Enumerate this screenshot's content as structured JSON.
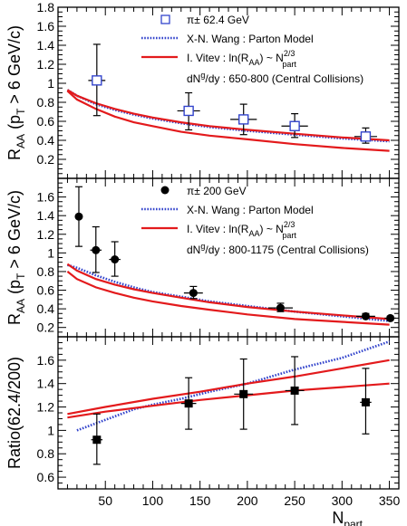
{
  "chart_data": [
    {
      "type": "scatter",
      "ylabel": "R_AA (p_T > 6 GeV/c)",
      "ylim": [
        0,
        1.8
      ],
      "yticks": [
        0.2,
        0.4,
        0.6,
        0.8,
        1.0,
        1.2,
        1.4,
        1.6,
        1.8
      ],
      "ytick_labels": [
        "0.2",
        "0.4",
        "0.6",
        "0.8",
        "1",
        "1.2",
        "1.4",
        "1.6",
        "1.8"
      ],
      "legend": {
        "placement": "top-center",
        "data_label": "π± 62.4 GeV",
        "wang_label": "X-N. Wang : Parton Model",
        "vitev_label_main": "I. Vitev : ln(R",
        "vitev_label_sub": "AA",
        "vitev_label_mid": ") ~ N",
        "vitev_label_sup": "2/3",
        "vitev_label_sub2": "part",
        "note_pre": "dN",
        "note_sup": "g",
        "note_post": "/dy : 650-800 (Central Collisions)"
      },
      "series": [
        {
          "name": "π± 62.4 GeV",
          "marker": "open-square",
          "color": "#3344cc",
          "points": [
            {
              "x": 41,
              "y": 1.03,
              "xerr": 9,
              "ylo": 0.66,
              "yhi": 1.41
            },
            {
              "x": 138,
              "y": 0.71,
              "xerr": 12,
              "ylo": 0.51,
              "yhi": 0.9
            },
            {
              "x": 196,
              "y": 0.62,
              "xerr": 14,
              "ylo": 0.46,
              "yhi": 0.78
            },
            {
              "x": 250,
              "y": 0.55,
              "xerr": 14,
              "ylo": 0.43,
              "yhi": 0.68
            },
            {
              "x": 325,
              "y": 0.44,
              "xerr": 12,
              "ylo": 0.37,
              "yhi": 0.53
            }
          ]
        },
        {
          "name": "X-N. Wang : Parton Model",
          "style": "dotted",
          "color": "#3344cc",
          "x": [
            10,
            20,
            40,
            60,
            80,
            100,
            130,
            160,
            200,
            250,
            300,
            350
          ],
          "y": [
            0.93,
            0.87,
            0.78,
            0.72,
            0.67,
            0.63,
            0.58,
            0.54,
            0.5,
            0.46,
            0.42,
            0.39
          ]
        },
        {
          "name": "I. Vitev upper",
          "style": "solid",
          "color": "#e31a1c",
          "x": [
            10,
            20,
            40,
            60,
            80,
            100,
            130,
            160,
            200,
            250,
            300,
            350
          ],
          "y": [
            0.93,
            0.87,
            0.79,
            0.73,
            0.68,
            0.64,
            0.59,
            0.55,
            0.51,
            0.47,
            0.43,
            0.4
          ]
        },
        {
          "name": "I. Vitev lower",
          "style": "solid",
          "color": "#e31a1c",
          "x": [
            10,
            20,
            40,
            60,
            80,
            100,
            130,
            160,
            200,
            250,
            300,
            350
          ],
          "y": [
            0.92,
            0.83,
            0.73,
            0.65,
            0.59,
            0.55,
            0.49,
            0.45,
            0.41,
            0.36,
            0.32,
            0.29
          ]
        }
      ]
    },
    {
      "type": "scatter",
      "ylabel": "R_AA (p_T > 6 GeV/c)",
      "ylim": [
        0.1,
        1.8
      ],
      "yticks": [
        0.2,
        0.4,
        0.6,
        0.8,
        1.0,
        1.2,
        1.4,
        1.6
      ],
      "ytick_labels": [
        "0.2",
        "0.4",
        "0.6",
        "0.8",
        "1",
        "1.2",
        "1.4",
        "1.6"
      ],
      "legend": {
        "placement": "top-center",
        "data_label": "π± 200 GeV",
        "wang_label": "X-N. Wang : Parton Model",
        "vitev_label_main": "I. Vitev : ln(R",
        "vitev_label_sub": "AA",
        "vitev_label_mid": ") ~ N",
        "vitev_label_sup": "2/3",
        "vitev_label_sub2": "part",
        "note_pre": "dN",
        "note_sup": "g",
        "note_post": "/dy : 800-1175 (Central Collisions)"
      },
      "series": [
        {
          "name": "π± 200 GeV",
          "marker": "filled-circle",
          "color": "#000000",
          "points": [
            {
              "x": 22,
              "y": 1.39,
              "xerr": 3,
              "ylo": 1.07,
              "yhi": 1.71
            },
            {
              "x": 40,
              "y": 1.03,
              "xerr": 6,
              "ylo": 0.79,
              "yhi": 1.28
            },
            {
              "x": 60,
              "y": 0.93,
              "xerr": 6,
              "ylo": 0.75,
              "yhi": 1.12
            },
            {
              "x": 143,
              "y": 0.57,
              "xerr": 10,
              "ylo": 0.51,
              "yhi": 0.64
            },
            {
              "x": 235,
              "y": 0.41,
              "xerr": 13,
              "ylo": 0.37,
              "yhi": 0.46
            },
            {
              "x": 325,
              "y": 0.32,
              "xerr": 10,
              "ylo": 0.3,
              "yhi": 0.35
            },
            {
              "x": 351,
              "y": 0.3,
              "xerr": 6,
              "ylo": 0.28,
              "yhi": 0.32
            }
          ]
        },
        {
          "name": "X-N. Wang : Parton Model",
          "style": "dotted",
          "color": "#3344cc",
          "x": [
            10,
            20,
            40,
            60,
            80,
            100,
            130,
            160,
            200,
            250,
            300,
            350
          ],
          "y": [
            0.87,
            0.84,
            0.76,
            0.69,
            0.63,
            0.58,
            0.53,
            0.48,
            0.43,
            0.37,
            0.32,
            0.27
          ]
        },
        {
          "name": "I. Vitev upper",
          "style": "solid",
          "color": "#e31a1c",
          "x": [
            10,
            20,
            40,
            60,
            80,
            100,
            130,
            160,
            200,
            250,
            300,
            350
          ],
          "y": [
            0.88,
            0.81,
            0.72,
            0.66,
            0.61,
            0.57,
            0.52,
            0.47,
            0.42,
            0.37,
            0.33,
            0.29
          ]
        },
        {
          "name": "I. Vitev lower",
          "style": "solid",
          "color": "#e31a1c",
          "x": [
            10,
            20,
            40,
            60,
            80,
            100,
            130,
            160,
            200,
            250,
            300,
            350
          ],
          "y": [
            0.8,
            0.72,
            0.63,
            0.57,
            0.52,
            0.48,
            0.43,
            0.39,
            0.34,
            0.29,
            0.26,
            0.23
          ]
        }
      ]
    },
    {
      "type": "scatter",
      "ylabel": "Ratio(62.4/200)",
      "xlabel_main": "N",
      "xlabel_sub": "part",
      "xlim": [
        0,
        360
      ],
      "ylim": [
        0.5,
        1.8
      ],
      "xticks": [
        50,
        100,
        150,
        200,
        250,
        300,
        350
      ],
      "xtick_labels": [
        "50",
        "100",
        "150",
        "200",
        "250",
        "300",
        "350"
      ],
      "yticks": [
        0.6,
        0.8,
        1.0,
        1.2,
        1.4,
        1.6
      ],
      "ytick_labels": [
        "0.6",
        "0.8",
        "1",
        "1.2",
        "1.4",
        "1.6"
      ],
      "series": [
        {
          "name": "Ratio",
          "marker": "filled-square",
          "color": "#000000",
          "points": [
            {
              "x": 41,
              "y": 0.92,
              "xerr": 6,
              "ylo": 0.71,
              "yhi": 1.14
            },
            {
              "x": 138,
              "y": 1.23,
              "xerr": 8,
              "ylo": 1.01,
              "yhi": 1.45
            },
            {
              "x": 196,
              "y": 1.31,
              "xerr": 10,
              "ylo": 1.01,
              "yhi": 1.61
            },
            {
              "x": 250,
              "y": 1.34,
              "xerr": 10,
              "ylo": 1.05,
              "yhi": 1.63
            },
            {
              "x": 325,
              "y": 1.24,
              "xerr": 6,
              "ylo": 0.97,
              "yhi": 1.53
            }
          ]
        },
        {
          "name": "X-N. Wang ratio",
          "style": "dotted",
          "color": "#3344cc",
          "x": [
            20,
            40,
            60,
            80,
            100,
            130,
            160,
            200,
            250,
            300,
            350
          ],
          "y": [
            1.0,
            1.06,
            1.12,
            1.18,
            1.22,
            1.27,
            1.33,
            1.4,
            1.52,
            1.62,
            1.76
          ]
        },
        {
          "name": "I. Vitev ratio upper",
          "style": "solid",
          "color": "#e31a1c",
          "x": [
            10,
            50,
            100,
            150,
            200,
            250,
            300,
            350
          ],
          "y": [
            1.14,
            1.2,
            1.27,
            1.33,
            1.4,
            1.46,
            1.53,
            1.6
          ]
        },
        {
          "name": "I. Vitev ratio lower",
          "style": "solid",
          "color": "#e31a1c",
          "x": [
            10,
            50,
            100,
            150,
            200,
            250,
            300,
            350
          ],
          "y": [
            1.11,
            1.16,
            1.21,
            1.26,
            1.3,
            1.34,
            1.37,
            1.4
          ]
        }
      ]
    }
  ]
}
